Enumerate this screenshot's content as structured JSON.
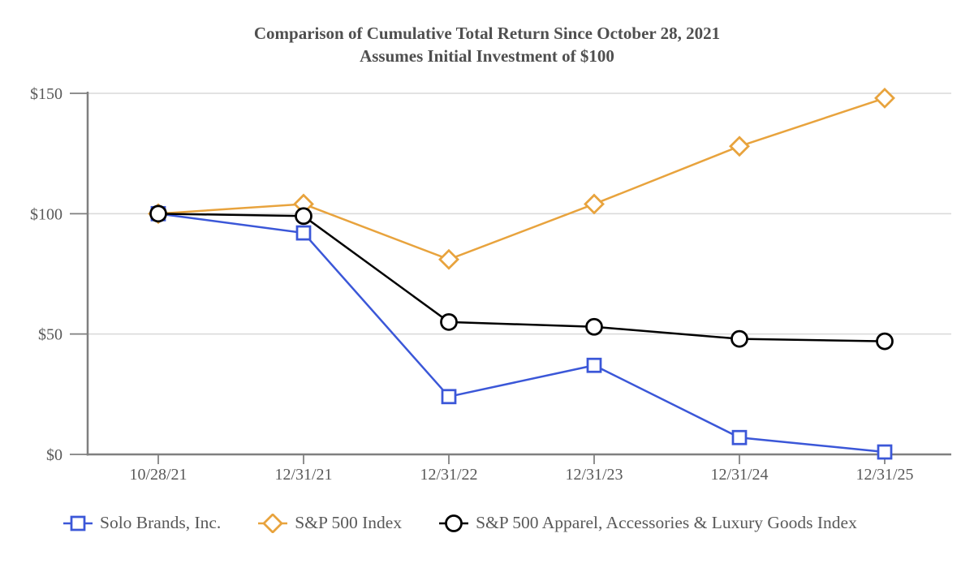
{
  "title": "Comparison of Cumulative Total Return Since October 28, 2021",
  "subtitle": "Assumes Initial Investment of $100",
  "chart_data": {
    "type": "line",
    "categories": [
      "10/28/21",
      "12/31/21",
      "12/31/22",
      "12/31/23",
      "12/31/24",
      "12/31/25"
    ],
    "series": [
      {
        "name": "Solo Brands, Inc.",
        "marker": "square",
        "color": "#3B57D8",
        "values": [
          100,
          92,
          24,
          37,
          7,
          1
        ]
      },
      {
        "name": "S&P 500 Index",
        "marker": "diamond",
        "color": "#E8A33D",
        "values": [
          100,
          104,
          81,
          104,
          128,
          148
        ]
      },
      {
        "name": "S&P 500 Apparel, Accessories & Luxury Goods Index",
        "marker": "circle",
        "color": "#000000",
        "values": [
          100,
          99,
          55,
          53,
          48,
          47
        ]
      }
    ],
    "y_tick_labels": [
      "$0",
      "$50",
      "$100",
      "$150"
    ],
    "y_tick_values": [
      0,
      50,
      100,
      150
    ],
    "ylim": [
      0,
      150
    ],
    "grid": true,
    "legend_position": "bottom"
  },
  "colors": {
    "grid": "#D9D9D9",
    "axis": "#7F7F7F",
    "tick_label": "#595959",
    "title": "#4F4F4F",
    "marker_fill": "#FFFFFF"
  }
}
